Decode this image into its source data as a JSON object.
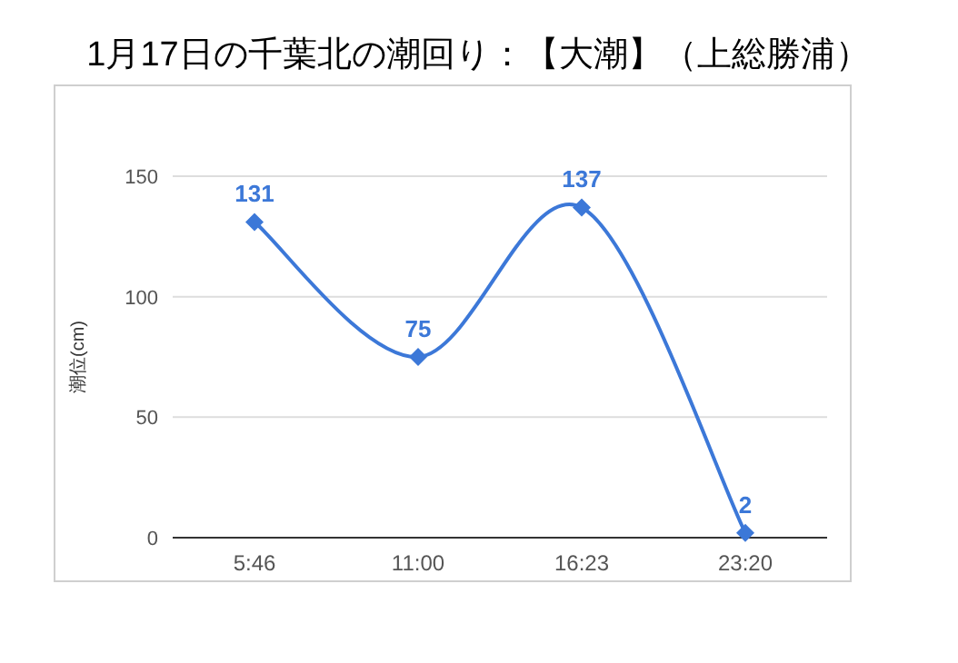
{
  "chart_data": {
    "type": "line",
    "title": "1月17日の千葉北の潮回り：【大潮】（上総勝浦）",
    "ylabel": "潮位(cm)",
    "categories": [
      "5:46",
      "11:00",
      "16:23",
      "23:20"
    ],
    "series": [
      {
        "color": "#3c78d8",
        "values": [
          131,
          75,
          137,
          2
        ]
      }
    ],
    "ylim": [
      0,
      150
    ],
    "yticks": [
      0,
      50,
      100,
      150
    ],
    "grid": "y",
    "marker": "diamond",
    "data_labels": true
  }
}
